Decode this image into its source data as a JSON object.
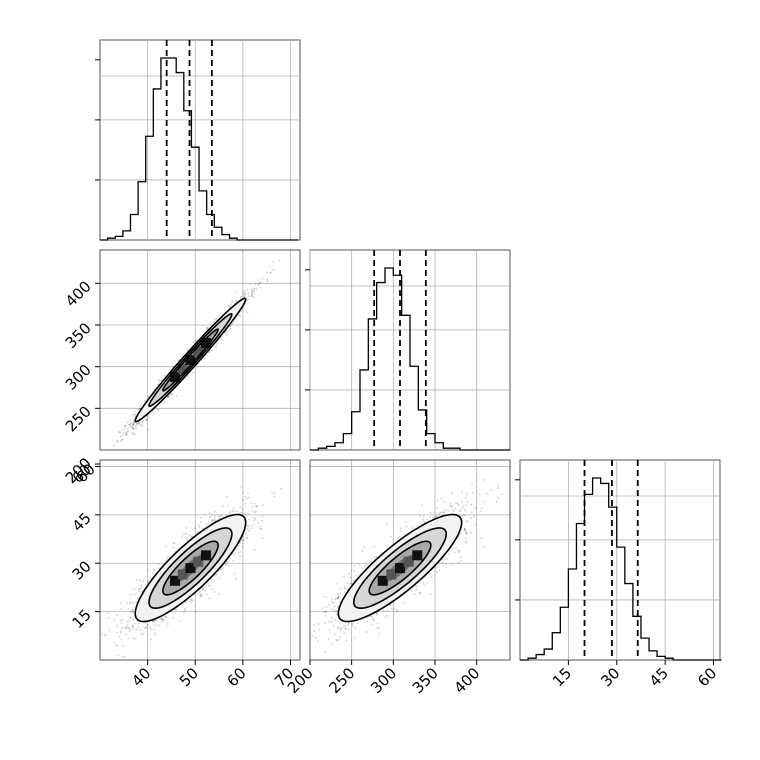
{
  "chart_data": {
    "type": "corner",
    "grid": true,
    "parameters": [
      {
        "range": [
          30,
          72
        ],
        "ticks": [
          "40",
          "50",
          "60",
          "70"
        ],
        "quantile_lines": [
          44,
          48.8,
          53.5
        ],
        "histogram": {
          "bin_start": 30,
          "bin_width": 1.6,
          "counts": [
            0,
            1,
            2,
            5,
            14,
            32,
            57,
            83,
            100,
            100,
            92,
            71,
            51,
            27,
            14,
            7,
            3,
            1,
            0,
            0,
            0,
            0,
            0,
            0,
            0,
            0
          ]
        }
      },
      {
        "range": [
          200,
          440
        ],
        "ticks": [
          "200",
          "250",
          "300",
          "350",
          "400"
        ],
        "y_ticks": [
          "250",
          "300",
          "350",
          "400"
        ],
        "quantile_lines": [
          277,
          308,
          339
        ],
        "histogram": {
          "bin_start": 200,
          "bin_width": 10,
          "counts": [
            0,
            1,
            2,
            4,
            9,
            21,
            44,
            72,
            92,
            100,
            96,
            74,
            46,
            22,
            9,
            4,
            1,
            1,
            0,
            0,
            0,
            0,
            0,
            0
          ]
        }
      },
      {
        "range": [
          0,
          62
        ],
        "ticks": [
          "15",
          "30",
          "45",
          "60"
        ],
        "quantile_lines": [
          20,
          28.5,
          36.5
        ],
        "histogram": {
          "bin_start": 0,
          "bin_width": 2.5,
          "counts": [
            0,
            1,
            3,
            6,
            15,
            29,
            50,
            75,
            91,
            100,
            97,
            84,
            62,
            42,
            24,
            12,
            5,
            2,
            1,
            0,
            0,
            0,
            0,
            0,
            0
          ]
        }
      }
    ],
    "pairs": [
      {
        "x_param": 0,
        "y_param": 1,
        "center": [
          49,
          308
        ],
        "sd": [
          5.8,
          37
        ],
        "corr": 0.985
      },
      {
        "x_param": 0,
        "y_param": 2,
        "center": [
          49,
          28.5
        ],
        "sd": [
          5.8,
          8.3
        ],
        "corr": 0.85
      },
      {
        "x_param": 1,
        "y_param": 2,
        "center": [
          308,
          28.5
        ],
        "sd": [
          37,
          8.3
        ],
        "corr": 0.85
      }
    ]
  }
}
